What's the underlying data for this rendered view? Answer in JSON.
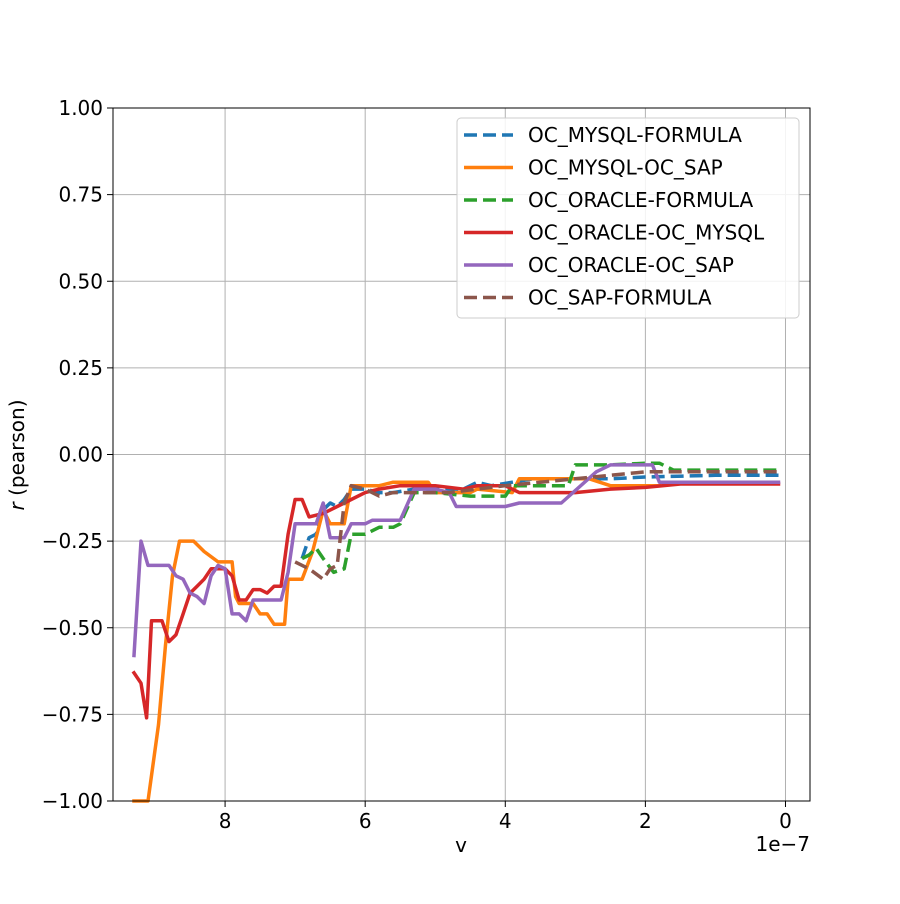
{
  "chart_data": {
    "type": "line",
    "title": "",
    "xlabel": "v",
    "ylabel_italic": "r",
    "ylabel_rest": " (pearson)",
    "x_offset_label": "1e−7",
    "x_scale": 1e-07,
    "xlim": [
      9.6e-07,
      -3.5e-08
    ],
    "ylim": [
      -1.0,
      1.0
    ],
    "x_ticks": [
      8e-07,
      6e-07,
      4e-07,
      2e-07,
      0
    ],
    "x_tick_labels": [
      "8",
      "6",
      "4",
      "2",
      "0"
    ],
    "y_ticks": [
      -1.0,
      -0.75,
      -0.5,
      -0.25,
      0.0,
      0.25,
      0.5,
      0.75,
      1.0
    ],
    "y_tick_labels": [
      "−1.00",
      "−0.75",
      "−0.50",
      "−0.25",
      "0.00",
      "0.25",
      "0.50",
      "0.75",
      "1.00"
    ],
    "grid": true,
    "legend_position": "top-right",
    "series": [
      {
        "name": "OC_MYSQL-FORMULA",
        "color": "#1f77b4",
        "dash": "dashed",
        "points": [
          [
            6.9e-07,
            -0.3
          ],
          [
            6.8e-07,
            -0.24
          ],
          [
            6.7e-07,
            -0.23
          ],
          [
            6.6e-07,
            -0.16
          ],
          [
            6.5e-07,
            -0.14
          ],
          [
            6.4e-07,
            -0.15
          ],
          [
            6.3e-07,
            -0.13
          ],
          [
            6.2e-07,
            -0.1
          ],
          [
            6e-07,
            -0.1
          ],
          [
            5.8e-07,
            -0.11
          ],
          [
            5.6e-07,
            -0.11
          ],
          [
            5.3e-07,
            -0.1
          ],
          [
            5e-07,
            -0.1
          ],
          [
            4.6e-07,
            -0.1
          ],
          [
            4.4e-07,
            -0.08
          ],
          [
            4.2e-07,
            -0.09
          ],
          [
            3.9e-07,
            -0.08
          ],
          [
            3.6e-07,
            -0.07
          ],
          [
            3e-07,
            -0.07
          ],
          [
            2.5e-07,
            -0.07
          ],
          [
            2e-07,
            -0.065
          ],
          [
            1e-07,
            -0.06
          ],
          [
            1e-08,
            -0.06
          ]
        ]
      },
      {
        "name": "OC_MYSQL-OC_SAP",
        "color": "#ff7f0e",
        "dash": "solid",
        "points": [
          [
            9.3e-07,
            -1.0
          ],
          [
            9.1e-07,
            -1.0
          ],
          [
            8.95e-07,
            -0.78
          ],
          [
            8.85e-07,
            -0.55
          ],
          [
            8.75e-07,
            -0.35
          ],
          [
            8.65e-07,
            -0.25
          ],
          [
            8.45e-07,
            -0.25
          ],
          [
            8.3e-07,
            -0.28
          ],
          [
            8.1e-07,
            -0.31
          ],
          [
            7.9e-07,
            -0.31
          ],
          [
            7.85e-07,
            -0.41
          ],
          [
            7.8e-07,
            -0.43
          ],
          [
            7.6e-07,
            -0.43
          ],
          [
            7.5e-07,
            -0.46
          ],
          [
            7.4e-07,
            -0.46
          ],
          [
            7.3e-07,
            -0.49
          ],
          [
            7.15e-07,
            -0.49
          ],
          [
            7.1e-07,
            -0.36
          ],
          [
            6.9e-07,
            -0.36
          ],
          [
            6.75e-07,
            -0.28
          ],
          [
            6.6e-07,
            -0.16
          ],
          [
            6.5e-07,
            -0.2
          ],
          [
            6.3e-07,
            -0.2
          ],
          [
            6.2e-07,
            -0.09
          ],
          [
            5.8e-07,
            -0.09
          ],
          [
            5.6e-07,
            -0.08
          ],
          [
            5.1e-07,
            -0.08
          ],
          [
            5e-07,
            -0.11
          ],
          [
            4.5e-07,
            -0.11
          ],
          [
            4.4e-07,
            -0.1
          ],
          [
            3.9e-07,
            -0.11
          ],
          [
            3.8e-07,
            -0.07
          ],
          [
            3.5e-07,
            -0.07
          ],
          [
            2.8e-07,
            -0.07
          ],
          [
            2.5e-07,
            -0.09
          ],
          [
            1.8e-07,
            -0.09
          ]
        ]
      },
      {
        "name": "OC_ORACLE-FORMULA",
        "color": "#2ca02c",
        "dash": "dashed",
        "points": [
          [
            6.9e-07,
            -0.3
          ],
          [
            6.8e-07,
            -0.29
          ],
          [
            6.7e-07,
            -0.27
          ],
          [
            6.6e-07,
            -0.3
          ],
          [
            6.45e-07,
            -0.34
          ],
          [
            6.3e-07,
            -0.33
          ],
          [
            6.2e-07,
            -0.23
          ],
          [
            6e-07,
            -0.23
          ],
          [
            5.8e-07,
            -0.21
          ],
          [
            5.6e-07,
            -0.21
          ],
          [
            5.5e-07,
            -0.2
          ],
          [
            5.3e-07,
            -0.11
          ],
          [
            5e-07,
            -0.11
          ],
          [
            4.5e-07,
            -0.12
          ],
          [
            4e-07,
            -0.12
          ],
          [
            3.9e-07,
            -0.09
          ],
          [
            3.5e-07,
            -0.09
          ],
          [
            3.1e-07,
            -0.09
          ],
          [
            3e-07,
            -0.03
          ],
          [
            2.5e-07,
            -0.03
          ],
          [
            2e-07,
            -0.025
          ],
          [
            1.8e-07,
            -0.025
          ],
          [
            1.6e-07,
            -0.045
          ],
          [
            1e-07,
            -0.045
          ],
          [
            1e-08,
            -0.045
          ]
        ]
      },
      {
        "name": "OC_ORACLE-OC_MYSQL",
        "color": "#d62728",
        "dash": "solid",
        "points": [
          [
            9.3e-07,
            -0.63
          ],
          [
            9.2e-07,
            -0.66
          ],
          [
            9.12e-07,
            -0.76
          ],
          [
            9.05e-07,
            -0.48
          ],
          [
            8.9e-07,
            -0.48
          ],
          [
            8.8e-07,
            -0.54
          ],
          [
            8.7e-07,
            -0.52
          ],
          [
            8.6e-07,
            -0.46
          ],
          [
            8.5e-07,
            -0.4
          ],
          [
            8.4e-07,
            -0.38
          ],
          [
            8.3e-07,
            -0.36
          ],
          [
            8.2e-07,
            -0.33
          ],
          [
            8e-07,
            -0.33
          ],
          [
            7.9e-07,
            -0.35
          ],
          [
            7.8e-07,
            -0.42
          ],
          [
            7.7e-07,
            -0.42
          ],
          [
            7.6e-07,
            -0.39
          ],
          [
            7.5e-07,
            -0.39
          ],
          [
            7.4e-07,
            -0.4
          ],
          [
            7.3e-07,
            -0.38
          ],
          [
            7.2e-07,
            -0.38
          ],
          [
            7.1e-07,
            -0.23
          ],
          [
            7e-07,
            -0.13
          ],
          [
            6.9e-07,
            -0.13
          ],
          [
            6.8e-07,
            -0.18
          ],
          [
            6.6e-07,
            -0.17
          ],
          [
            6.4e-07,
            -0.15
          ],
          [
            6.2e-07,
            -0.13
          ],
          [
            6e-07,
            -0.11
          ],
          [
            5.8e-07,
            -0.1
          ],
          [
            5.5e-07,
            -0.09
          ],
          [
            5e-07,
            -0.09
          ],
          [
            4.6e-07,
            -0.1
          ],
          [
            4.4e-07,
            -0.09
          ],
          [
            4e-07,
            -0.09
          ],
          [
            3.8e-07,
            -0.11
          ],
          [
            3e-07,
            -0.11
          ],
          [
            2.5e-07,
            -0.1
          ],
          [
            2e-07,
            -0.095
          ],
          [
            1.5e-07,
            -0.085
          ],
          [
            1e-07,
            -0.085
          ],
          [
            1e-08,
            -0.085
          ]
        ]
      },
      {
        "name": "OC_ORACLE-OC_SAP",
        "color": "#9467bd",
        "dash": "solid",
        "points": [
          [
            9.3e-07,
            -0.58
          ],
          [
            9.2e-07,
            -0.25
          ],
          [
            9.1e-07,
            -0.32
          ],
          [
            8.8e-07,
            -0.32
          ],
          [
            8.7e-07,
            -0.35
          ],
          [
            8.6e-07,
            -0.36
          ],
          [
            8.5e-07,
            -0.4
          ],
          [
            8.4e-07,
            -0.41
          ],
          [
            8.3e-07,
            -0.43
          ],
          [
            8.2e-07,
            -0.35
          ],
          [
            8.1e-07,
            -0.32
          ],
          [
            8e-07,
            -0.33
          ],
          [
            7.9e-07,
            -0.46
          ],
          [
            7.8e-07,
            -0.46
          ],
          [
            7.7e-07,
            -0.48
          ],
          [
            7.6e-07,
            -0.42
          ],
          [
            7.2e-07,
            -0.42
          ],
          [
            7.1e-07,
            -0.34
          ],
          [
            7e-07,
            -0.2
          ],
          [
            6.7e-07,
            -0.2
          ],
          [
            6.6e-07,
            -0.14
          ],
          [
            6.5e-07,
            -0.24
          ],
          [
            6.3e-07,
            -0.24
          ],
          [
            6.2e-07,
            -0.2
          ],
          [
            6e-07,
            -0.2
          ],
          [
            5.9e-07,
            -0.19
          ],
          [
            5.5e-07,
            -0.19
          ],
          [
            5.3e-07,
            -0.1
          ],
          [
            5e-07,
            -0.1
          ],
          [
            4.8e-07,
            -0.11
          ],
          [
            4.7e-07,
            -0.15
          ],
          [
            4e-07,
            -0.15
          ],
          [
            3.8e-07,
            -0.14
          ],
          [
            3.2e-07,
            -0.14
          ],
          [
            2.7e-07,
            -0.05
          ],
          [
            2.5e-07,
            -0.03
          ],
          [
            1.9e-07,
            -0.03
          ],
          [
            1.8e-07,
            -0.08
          ],
          [
            1e-07,
            -0.08
          ],
          [
            1e-08,
            -0.08
          ]
        ]
      },
      {
        "name": "OC_SAP-FORMULA",
        "color": "#8c564b",
        "dash": "dashed",
        "points": [
          [
            7e-07,
            -0.31
          ],
          [
            6.8e-07,
            -0.33
          ],
          [
            6.6e-07,
            -0.36
          ],
          [
            6.5e-07,
            -0.33
          ],
          [
            6.4e-07,
            -0.32
          ],
          [
            6.3e-07,
            -0.14
          ],
          [
            6.2e-07,
            -0.09
          ],
          [
            6e-07,
            -0.1
          ],
          [
            5.8e-07,
            -0.12
          ],
          [
            5.6e-07,
            -0.11
          ],
          [
            5.2e-07,
            -0.11
          ],
          [
            4.8e-07,
            -0.11
          ],
          [
            4.4e-07,
            -0.1
          ],
          [
            4e-07,
            -0.09
          ],
          [
            3.5e-07,
            -0.08
          ],
          [
            3e-07,
            -0.07
          ],
          [
            2.5e-07,
            -0.06
          ],
          [
            2e-07,
            -0.05
          ],
          [
            1e-07,
            -0.05
          ],
          [
            1e-08,
            -0.05
          ]
        ]
      }
    ]
  }
}
